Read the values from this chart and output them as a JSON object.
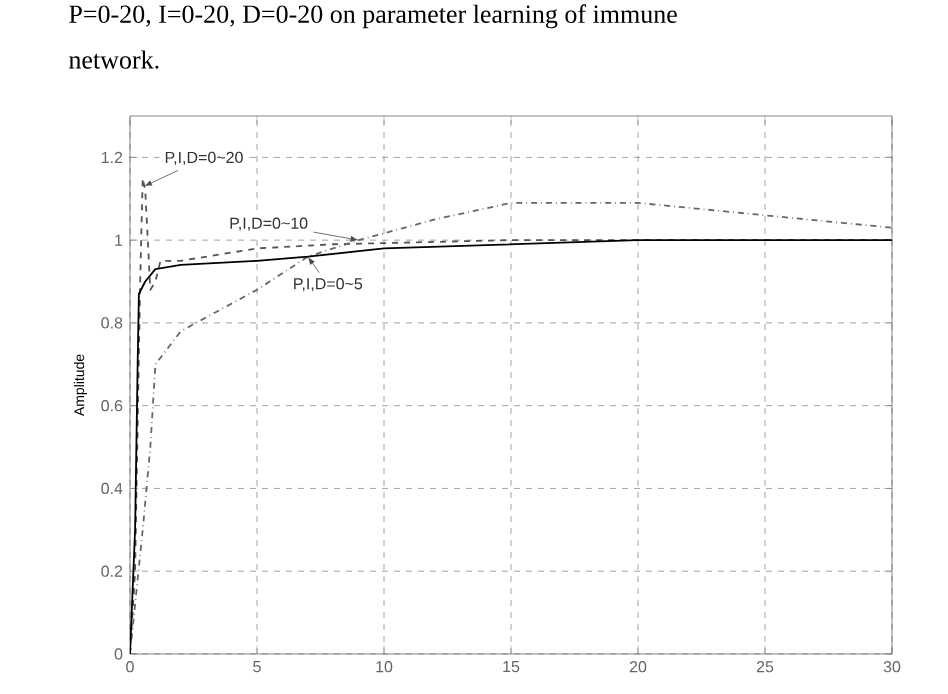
{
  "chart_data": {
    "type": "line",
    "title": "P=0-20, I=0-20, D=0-20 on parameter learning of immune",
    "subtitle": "network.",
    "ylabel": "Amplitude",
    "xlim": [
      0,
      30
    ],
    "ylim": [
      0,
      1.3
    ],
    "xticks": [
      0,
      5,
      10,
      15,
      20,
      25,
      30
    ],
    "yticks": [
      0,
      0.2,
      0.4,
      0.6,
      0.8,
      1,
      1.2
    ],
    "grid": true,
    "series": [
      {
        "color": "#555555",
        "line_style": "dashed",
        "x": [
          0,
          0.2,
          0.4,
          0.5,
          0.6,
          0.8,
          1,
          1.2,
          2,
          5,
          8,
          15,
          30
        ],
        "values": [
          0,
          0.2,
          0.9,
          1.15,
          1.12,
          0.88,
          0.9,
          0.95,
          0.95,
          0.98,
          0.99,
          1.0,
          1.0
        ]
      },
      {
        "color": "#666666",
        "line_style": "dotted",
        "x": [
          0,
          0.5,
          0.8,
          1,
          2,
          5,
          7,
          9,
          12,
          15,
          20,
          25,
          30
        ],
        "values": [
          0,
          0.3,
          0.5,
          0.7,
          0.78,
          0.88,
          0.96,
          1.0,
          1.05,
          1.09,
          1.09,
          1.06,
          1.03
        ]
      },
      {
        "color": "#000000",
        "line_style": "solid",
        "x": [
          0,
          0.2,
          0.3,
          0.35,
          0.6,
          1,
          2,
          5,
          7,
          10,
          15,
          20,
          30
        ],
        "values": [
          0,
          0.3,
          0.7,
          0.87,
          0.9,
          0.93,
          0.94,
          0.95,
          0.96,
          0.98,
          0.99,
          1.0,
          1.0
        ]
      }
    ],
    "annotations": [
      {
        "text": "P,I,D=0~20",
        "x": 0.55,
        "y": 1.13
      },
      {
        "text": "P,I,D=0~10",
        "x": 9,
        "y": 1.0
      },
      {
        "text": "P,I,D=0~5",
        "x": 7,
        "y": 0.96
      }
    ]
  }
}
